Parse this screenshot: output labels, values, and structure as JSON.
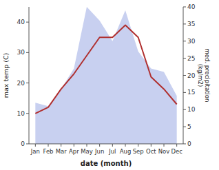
{
  "chart_data": {
    "type": "line",
    "categories": [
      "Jan",
      "Feb",
      "Mar",
      "Apr",
      "May",
      "Jun",
      "Jul",
      "Aug",
      "Sep",
      "Oct",
      "Nov",
      "Dec"
    ],
    "series": [
      {
        "type": "area",
        "axis": "y2",
        "color": "#c8d0f0",
        "values": [
          12,
          11,
          16,
          22,
          40,
          36,
          30,
          39,
          27,
          22,
          21,
          14
        ]
      },
      {
        "type": "line",
        "color": "#b03030",
        "values": [
          10,
          12,
          18,
          23,
          29,
          35,
          35,
          39,
          35,
          22,
          18,
          13
        ]
      }
    ],
    "xlabel": "date (month)",
    "ylabel": "max temp (C)",
    "y2label": "med. precipitation\n(kg/m2)",
    "ylim": [
      0,
      45
    ],
    "yticks": [
      0,
      10,
      20,
      30,
      40
    ],
    "y2lim": [
      0,
      40
    ],
    "y2ticks": [
      0,
      5,
      10,
      15,
      20,
      25,
      30,
      35,
      40
    ],
    "grid": false
  }
}
